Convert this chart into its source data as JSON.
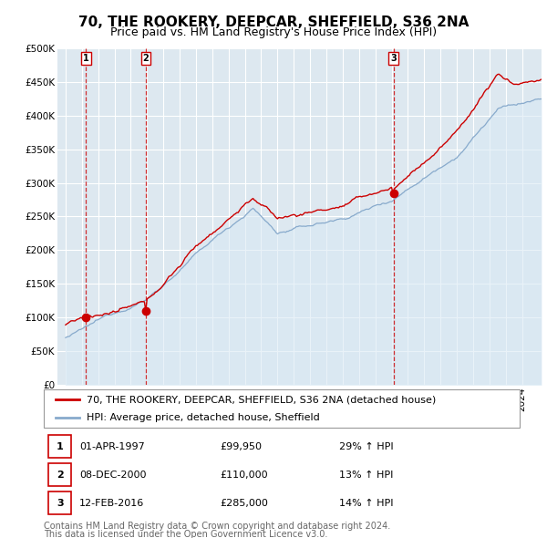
{
  "title": "70, THE ROOKERY, DEEPCAR, SHEFFIELD, S36 2NA",
  "subtitle": "Price paid vs. HM Land Registry's House Price Index (HPI)",
  "ylabel_ticks": [
    "£0",
    "£50K",
    "£100K",
    "£150K",
    "£200K",
    "£250K",
    "£300K",
    "£350K",
    "£400K",
    "£450K",
    "£500K"
  ],
  "ytick_values": [
    0,
    50000,
    100000,
    150000,
    200000,
    250000,
    300000,
    350000,
    400000,
    450000,
    500000
  ],
  "ylim": [
    0,
    500000
  ],
  "xlim_start": 1995.5,
  "xlim_end": 2025.2,
  "sale_color": "#cc0000",
  "hpi_color": "#88aacc",
  "hpi_fill_color": "#d8e8f4",
  "legend_label_sale": "70, THE ROOKERY, DEEPCAR, SHEFFIELD, S36 2NA (detached house)",
  "legend_label_hpi": "HPI: Average price, detached house, Sheffield",
  "transactions": [
    {
      "num": 1,
      "date": "01-APR-1997",
      "price": 99950,
      "pct": "29%",
      "direction": "↑",
      "ref": "HPI",
      "x_year": 1997.25
    },
    {
      "num": 2,
      "date": "08-DEC-2000",
      "price": 110000,
      "pct": "13%",
      "direction": "↑",
      "ref": "HPI",
      "x_year": 2000.92
    },
    {
      "num": 3,
      "date": "12-FEB-2016",
      "price": 285000,
      "pct": "14%",
      "direction": "↑",
      "ref": "HPI",
      "x_year": 2016.12
    }
  ],
  "footnote1": "Contains HM Land Registry data © Crown copyright and database right 2024.",
  "footnote2": "This data is licensed under the Open Government Licence v3.0.",
  "background_color": "#ffffff",
  "plot_bg_color": "#dde8f0",
  "grid_color": "#ffffff",
  "title_fontsize": 11,
  "subtitle_fontsize": 9,
  "tick_fontsize": 7.5,
  "legend_fontsize": 8,
  "table_fontsize": 8,
  "footnote_fontsize": 7
}
